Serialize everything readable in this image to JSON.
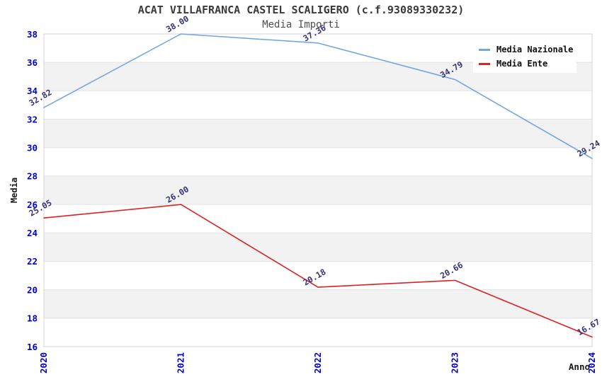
{
  "header": {
    "title": "ACAT VILLAFRANCA CASTEL SCALIGERO (c.f.93089330232)",
    "subtitle": "Media Importi"
  },
  "axes": {
    "y_label": "Media",
    "x_label": "Anno"
  },
  "legend": {
    "items": [
      {
        "label": "Media Nazionale",
        "color": "#74a7dd"
      },
      {
        "label": "Media Ente",
        "color": "#dd2222"
      }
    ]
  },
  "colors": {
    "tick_label": "#0000cc",
    "point_label": "#333377",
    "grid_line": "#e3e3e3",
    "band_fill": "#f2f2f2",
    "plot_border": "#d6d6d6",
    "title": "#3a3a3a",
    "subtitle": "#4d4d4d",
    "axis_title": "#1a1a1a",
    "legend_text": "#111111",
    "series_nazionale": "#74a7dd",
    "series_ente": "#dd2222"
  },
  "chart_data": {
    "type": "line",
    "title": "ACAT VILLAFRANCA CASTEL SCALIGERO (c.f.93089330232)",
    "subtitle": "Media Importi",
    "xlabel": "Anno",
    "ylabel": "Media",
    "x": [
      "2020",
      "2021",
      "2022",
      "2023",
      "2024"
    ],
    "series": [
      {
        "name": "Media Nazionale",
        "color": "#74a7dd",
        "values": [
          32.82,
          38.0,
          37.36,
          34.79,
          29.24
        ]
      },
      {
        "name": "Media Ente",
        "color": "#dd2222",
        "values": [
          25.05,
          26.0,
          20.18,
          20.66,
          16.67
        ]
      }
    ],
    "ylim": [
      16,
      38
    ],
    "ytick_step": 2,
    "yticks": [
      16,
      18,
      20,
      22,
      24,
      26,
      28,
      30,
      32,
      34,
      36,
      38
    ],
    "grid": "horizontal",
    "background_bands": "alternating gray/white between gridlines",
    "legend_position": "top-right",
    "point_labels": true,
    "point_label_rotation_deg": -30,
    "xtick_rotation_deg": 90
  }
}
